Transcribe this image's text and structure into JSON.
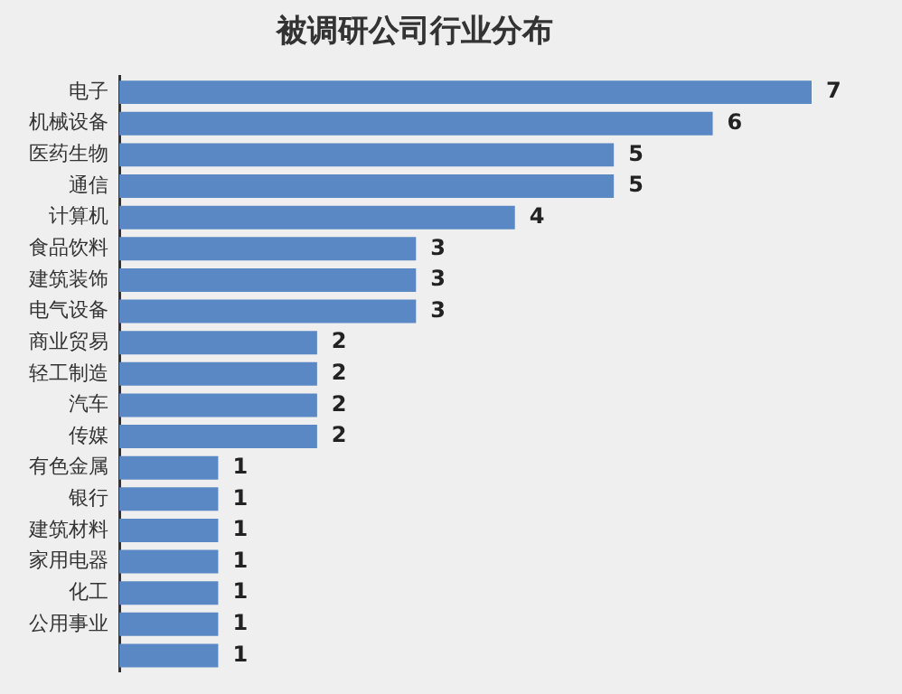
{
  "chart_data": {
    "type": "bar",
    "orientation": "horizontal",
    "title": "被调研公司行业分布",
    "categories": [
      "电子",
      "机械设备",
      "医药生物",
      "通信",
      "计算机",
      "食品饮料",
      "建筑装饰",
      "电气设备",
      "商业贸易",
      "轻工制造",
      "汽车",
      "传媒",
      "有色金属",
      "银行",
      "建筑材料",
      "家用电器",
      "化工",
      "公用事业",
      null
    ],
    "values": [
      7,
      6,
      5,
      5,
      4,
      3,
      3,
      3,
      2,
      2,
      2,
      2,
      1,
      1,
      1,
      1,
      1,
      1,
      1
    ],
    "color": "#5a88c4",
    "data_labels": true,
    "grid": false,
    "legend": false
  }
}
